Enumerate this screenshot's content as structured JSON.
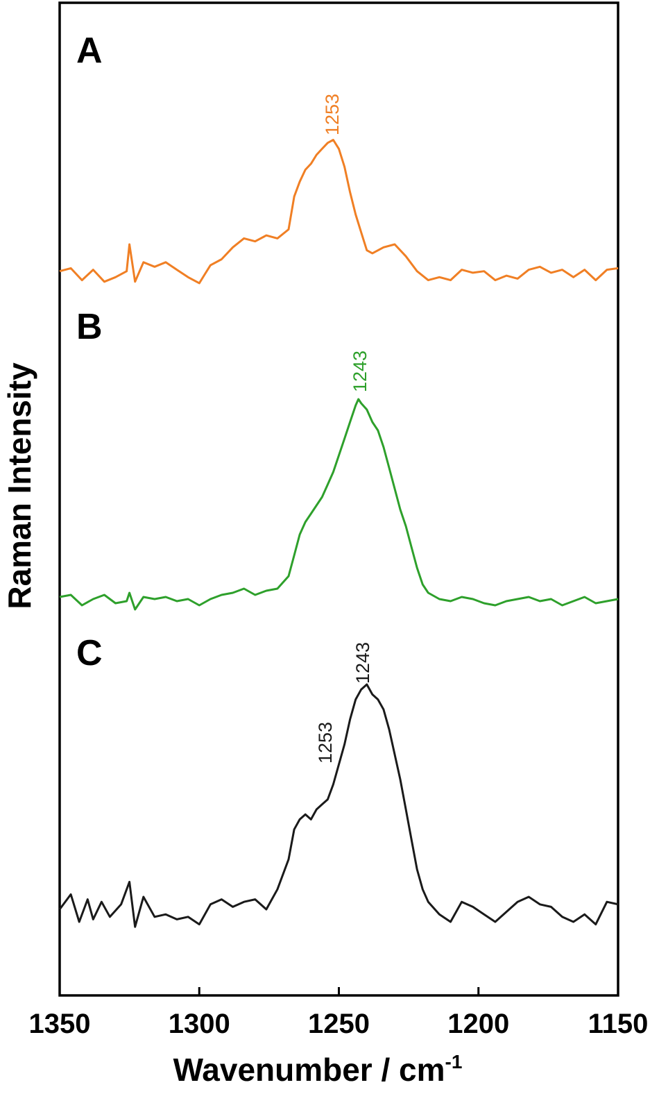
{
  "chart_data": {
    "type": "line",
    "xlabel": "Wavenumber  /  cm",
    "xlabel_superscript": "-1",
    "ylabel": "Raman Intensity",
    "xlim": [
      1350,
      1150
    ],
    "x_reversed": true,
    "xticks": [
      1350,
      1300,
      1250,
      1200,
      1150
    ],
    "y_ticks_shown": false,
    "grid": false,
    "panels": [
      {
        "label": "A",
        "color": "#f07f24",
        "peak_labels": [
          "1253"
        ],
        "x": [
          1350,
          1346,
          1342,
          1338,
          1334,
          1330,
          1326,
          1325,
          1323,
          1320,
          1316,
          1312,
          1308,
          1304,
          1300,
          1298,
          1296,
          1292,
          1288,
          1284,
          1280,
          1276,
          1272,
          1268,
          1266,
          1264,
          1262,
          1260,
          1258,
          1256,
          1254,
          1252,
          1250,
          1248,
          1246,
          1244,
          1242,
          1240,
          1238,
          1234,
          1230,
          1226,
          1222,
          1218,
          1214,
          1210,
          1206,
          1202,
          1198,
          1194,
          1190,
          1186,
          1182,
          1178,
          1174,
          1170,
          1166,
          1162,
          1158,
          1154,
          1150
        ],
        "y": [
          0.02,
          0.04,
          -0.04,
          0.03,
          -0.05,
          -0.02,
          0.02,
          0.2,
          -0.05,
          0.08,
          0.05,
          0.08,
          0.03,
          -0.02,
          -0.06,
          0.0,
          0.06,
          0.1,
          0.18,
          0.24,
          0.22,
          0.26,
          0.24,
          0.3,
          0.52,
          0.62,
          0.7,
          0.74,
          0.8,
          0.84,
          0.88,
          0.9,
          0.84,
          0.72,
          0.55,
          0.4,
          0.28,
          0.16,
          0.14,
          0.18,
          0.2,
          0.12,
          0.02,
          -0.04,
          -0.02,
          -0.04,
          0.03,
          0.01,
          0.02,
          -0.04,
          -0.01,
          -0.03,
          0.03,
          0.05,
          0.01,
          0.03,
          -0.02,
          0.03,
          -0.04,
          0.03,
          0.04
        ]
      },
      {
        "label": "B",
        "color": "#2ea02b",
        "peak_labels": [
          "1243"
        ],
        "x": [
          1350,
          1346,
          1342,
          1338,
          1334,
          1330,
          1326,
          1325,
          1323,
          1320,
          1316,
          1312,
          1308,
          1304,
          1300,
          1296,
          1292,
          1288,
          1284,
          1280,
          1276,
          1272,
          1268,
          1266,
          1264,
          1262,
          1260,
          1258,
          1256,
          1254,
          1252,
          1250,
          1248,
          1246,
          1244,
          1243,
          1242,
          1240,
          1238,
          1236,
          1234,
          1232,
          1230,
          1228,
          1226,
          1224,
          1222,
          1220,
          1218,
          1214,
          1210,
          1206,
          1202,
          1198,
          1194,
          1190,
          1186,
          1182,
          1178,
          1174,
          1170,
          1166,
          1162,
          1158,
          1154,
          1150
        ],
        "y": [
          0.02,
          0.03,
          -0.02,
          0.01,
          0.03,
          -0.01,
          0.0,
          0.04,
          -0.04,
          0.02,
          0.01,
          0.02,
          0.0,
          0.01,
          -0.02,
          0.01,
          0.03,
          0.04,
          0.06,
          0.03,
          0.05,
          0.06,
          0.12,
          0.22,
          0.32,
          0.38,
          0.42,
          0.46,
          0.5,
          0.56,
          0.62,
          0.7,
          0.78,
          0.86,
          0.94,
          0.97,
          0.95,
          0.92,
          0.86,
          0.82,
          0.74,
          0.64,
          0.54,
          0.44,
          0.36,
          0.26,
          0.16,
          0.08,
          0.04,
          0.01,
          0.0,
          0.02,
          0.01,
          -0.01,
          -0.02,
          0.0,
          0.01,
          0.02,
          0.0,
          0.01,
          -0.02,
          0.0,
          0.02,
          -0.01,
          0.0,
          0.01
        ]
      },
      {
        "label": "C",
        "color": "#1a1a1a",
        "peak_labels": [
          "1253",
          "1243"
        ],
        "x": [
          1350,
          1346,
          1343,
          1340,
          1338,
          1335,
          1332,
          1328,
          1325,
          1323,
          1320,
          1316,
          1312,
          1308,
          1304,
          1300,
          1296,
          1292,
          1288,
          1284,
          1280,
          1276,
          1272,
          1268,
          1266,
          1264,
          1262,
          1260,
          1258,
          1256,
          1254,
          1252,
          1250,
          1248,
          1246,
          1244,
          1242,
          1240,
          1238,
          1236,
          1234,
          1232,
          1230,
          1228,
          1226,
          1224,
          1222,
          1220,
          1218,
          1214,
          1210,
          1206,
          1202,
          1198,
          1194,
          1190,
          1186,
          1182,
          1178,
          1174,
          1170,
          1166,
          1162,
          1158,
          1154,
          1150
        ],
        "y": [
          0.0,
          0.06,
          -0.05,
          0.04,
          -0.04,
          0.03,
          -0.03,
          0.02,
          0.11,
          -0.07,
          0.05,
          -0.03,
          -0.02,
          -0.04,
          -0.03,
          -0.06,
          0.02,
          0.04,
          0.01,
          0.03,
          0.04,
          0.0,
          0.08,
          0.2,
          0.32,
          0.36,
          0.38,
          0.36,
          0.4,
          0.42,
          0.44,
          0.5,
          0.58,
          0.66,
          0.76,
          0.84,
          0.88,
          0.9,
          0.86,
          0.84,
          0.8,
          0.72,
          0.62,
          0.52,
          0.4,
          0.28,
          0.16,
          0.08,
          0.03,
          -0.02,
          -0.05,
          0.03,
          0.01,
          -0.02,
          -0.05,
          -0.01,
          0.03,
          0.05,
          0.02,
          0.01,
          -0.03,
          -0.05,
          -0.02,
          -0.06,
          0.03,
          0.02
        ]
      }
    ]
  }
}
